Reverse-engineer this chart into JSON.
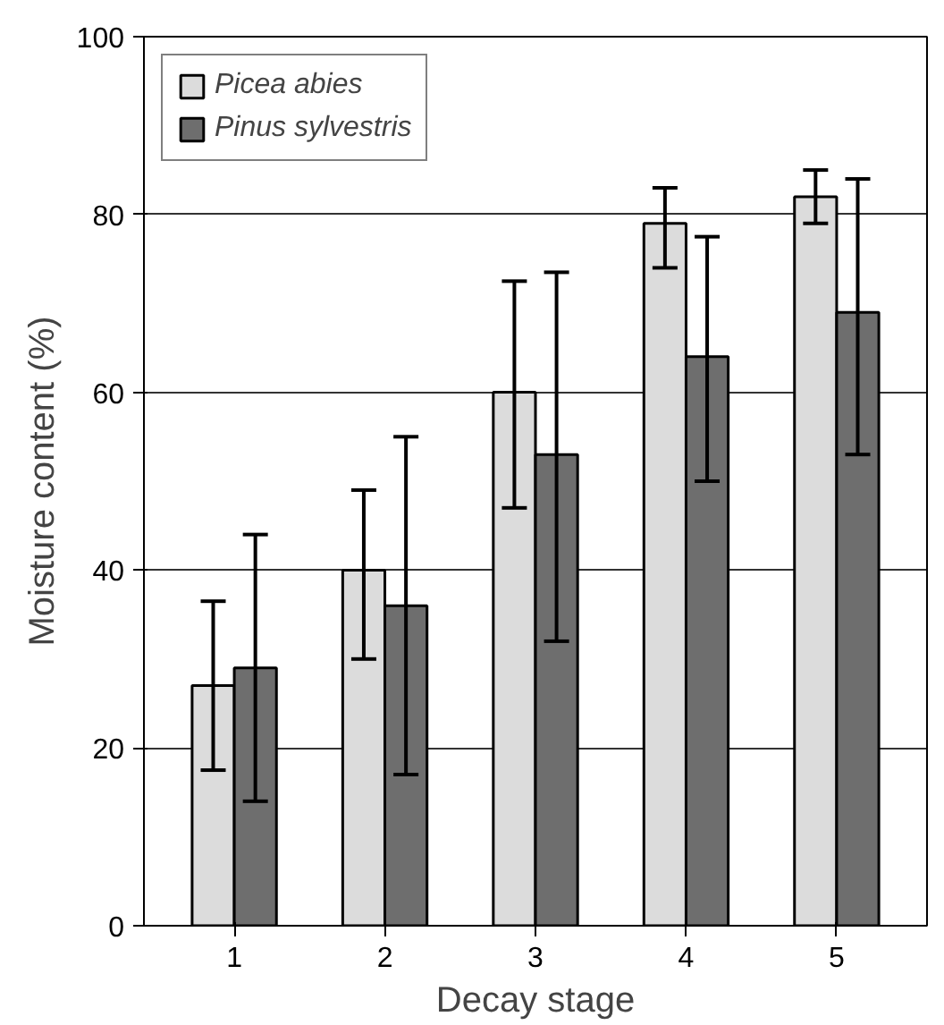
{
  "chart_data": {
    "type": "bar",
    "xlabel": "Decay stage",
    "ylabel": "Moisture content (%)",
    "categories": [
      "1",
      "2",
      "3",
      "4",
      "5"
    ],
    "series": [
      {
        "name": "Picea abies",
        "color": "#dcdcdc",
        "values": [
          27,
          40,
          60,
          79,
          82
        ],
        "errors": [
          [
            17.5,
            36.5
          ],
          [
            30,
            49
          ],
          [
            47,
            72.5
          ],
          [
            74,
            83
          ],
          [
            79,
            85
          ]
        ]
      },
      {
        "name": "Pinus sylvestris",
        "color": "#6e6e6e",
        "values": [
          29,
          36,
          53,
          64,
          69
        ],
        "errors": [
          [
            14,
            44
          ],
          [
            17,
            55
          ],
          [
            32,
            73.5
          ],
          [
            50,
            77.5
          ],
          [
            53,
            84
          ]
        ]
      }
    ],
    "ylim": [
      0,
      100
    ],
    "yticks": [
      0,
      20,
      40,
      60,
      80,
      100
    ],
    "grid": "y",
    "legend": "top left"
  }
}
